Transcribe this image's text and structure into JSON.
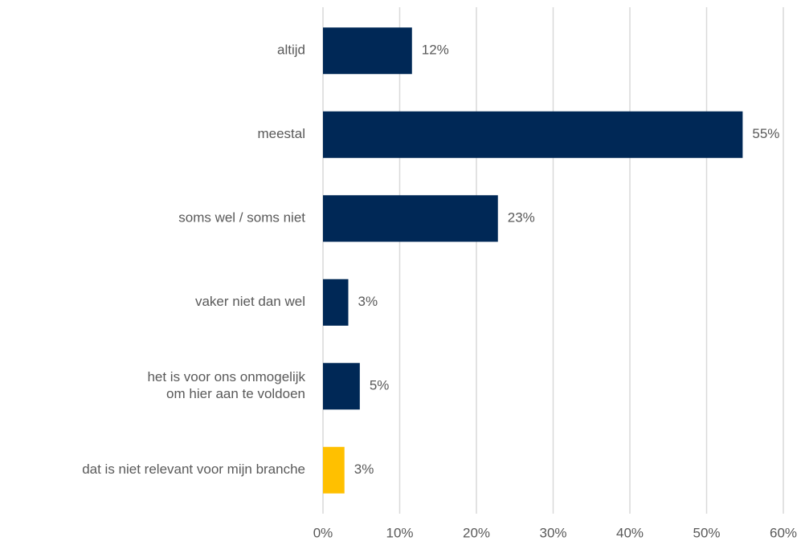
{
  "chart_data": {
    "type": "hbar",
    "categories": [
      "altijd",
      "meestal",
      "soms wel / soms niet",
      "vaker niet dan wel",
      "het is voor ons onmogelijk\nom hier aan te voldoen",
      "dat is niet relevant voor mijn branche"
    ],
    "values": [
      11.6,
      54.7,
      22.8,
      3.3,
      4.8,
      2.8
    ],
    "value_labels": [
      "12%",
      "55%",
      "23%",
      "3%",
      "5%",
      "3%"
    ],
    "colors": [
      "#002856",
      "#002856",
      "#002856",
      "#002856",
      "#002856",
      "#ffc000"
    ],
    "xlim": [
      0,
      60
    ],
    "xticks": [
      {
        "value": 0,
        "label": "0%"
      },
      {
        "value": 10,
        "label": "10%"
      },
      {
        "value": 20,
        "label": "20%"
      },
      {
        "value": 30,
        "label": "30%"
      },
      {
        "value": 40,
        "label": "40%"
      },
      {
        "value": 50,
        "label": "50%"
      },
      {
        "value": 60,
        "label": "60%"
      }
    ],
    "grid": true
  }
}
